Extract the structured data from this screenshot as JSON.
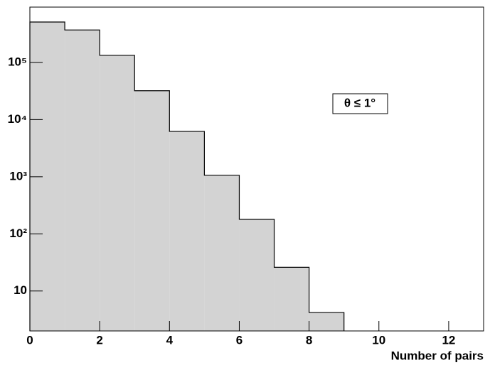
{
  "chart_data": {
    "type": "histogram",
    "x_label": "Number of pairs",
    "annotation": "θ ≤ 1°",
    "bins": [
      0,
      1,
      2,
      3,
      4,
      5,
      6,
      7,
      8,
      9
    ],
    "values": [
      510000,
      370000,
      133000,
      32000,
      6200,
      1060,
      180,
      26,
      4.2
    ],
    "color": "#d3d3d3",
    "xlim": [
      0,
      13
    ],
    "xticks": [
      0,
      2,
      4,
      6,
      8,
      10,
      12
    ],
    "ylim": [
      2,
      930000
    ],
    "log_y": true,
    "yticks": [
      10,
      {
        "value": 100,
        "label": "10²"
      },
      {
        "value": 1000,
        "label": "10³"
      },
      {
        "value": 10000,
        "label": "10⁴"
      },
      {
        "value": 100000,
        "label": "10⁵"
      }
    ]
  }
}
